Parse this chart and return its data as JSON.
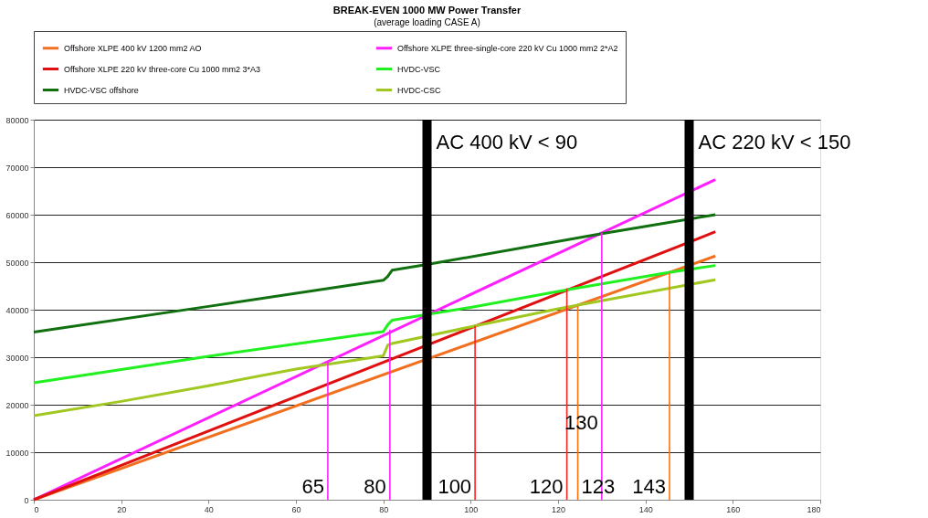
{
  "chart_data": {
    "type": "line",
    "title": "BREAK-EVEN 1000 MW Power Transfer",
    "subtitle": "(average loading CASE A)",
    "xlim": [
      0,
      180
    ],
    "xticks": [
      0,
      20,
      40,
      60,
      80,
      100,
      120,
      140,
      160,
      180
    ],
    "ylim": [
      0,
      80000
    ],
    "yticks": [
      0,
      10000,
      20000,
      30000,
      40000,
      50000,
      60000,
      70000,
      80000
    ],
    "grid": "y",
    "legend": "top",
    "line_style": "solid",
    "marker": "none",
    "series": [
      {
        "name": "Offshore XLPE 400 kV 1200 mm2 AO",
        "color": "#f07020",
        "x": [
          0,
          156
        ],
        "values": [
          0,
          51300
        ]
      },
      {
        "name": "Offshore XLPE three-single-core 220 kV Cu 1000 mm2 2*A2",
        "color": "#ff20ff",
        "x": [
          0,
          156
        ],
        "values": [
          0,
          67400
        ]
      },
      {
        "name": "Offshore XLPE 220 kV three-core Cu 1000 mm2 3*A3",
        "color": "#e01010",
        "x": [
          0,
          156
        ],
        "values": [
          0,
          56400
        ]
      },
      {
        "name": "HVDC-VSC",
        "color": "#20f020",
        "x": [
          0,
          40,
          80,
          81,
          82,
          100,
          122,
          145,
          156
        ],
        "values": [
          24600,
          30200,
          35400,
          36800,
          37800,
          40500,
          44200,
          47800,
          49300
        ]
      },
      {
        "name": "HVDC-VSC offshore",
        "color": "#107010",
        "x": [
          0,
          40,
          80,
          81,
          82,
          90,
          130,
          156
        ],
        "values": [
          35300,
          40700,
          46200,
          47000,
          48300,
          49500,
          56000,
          60000
        ]
      },
      {
        "name": "HVDC-CSC",
        "color": "#a0c820",
        "x": [
          0,
          20,
          40,
          60,
          80,
          81,
          82,
          100,
          120,
          156
        ],
        "values": [
          17700,
          20700,
          24000,
          27500,
          30300,
          32500,
          32900,
          36400,
          40200,
          46300
        ]
      },
      {
        "type": "line",
        "color": "#ff20ff",
        "x": [
          67.3,
          67.3
        ],
        "values": [
          0,
          29000
        ]
      },
      {
        "type": "line",
        "color": "#ff20ff",
        "x": [
          81.5,
          81.5
        ],
        "values": [
          0,
          35800
        ]
      },
      {
        "type": "line",
        "color": "#ff2020",
        "x": [
          101,
          101
        ],
        "values": [
          0,
          36600
        ]
      },
      {
        "type": "line",
        "color": "#ff2020",
        "x": [
          122,
          122
        ],
        "values": [
          0,
          44500
        ]
      },
      {
        "type": "line",
        "color": "#ff7010",
        "x": [
          124.5,
          124.5
        ],
        "values": [
          0,
          40700
        ]
      },
      {
        "type": "line",
        "color": "#ff20ff",
        "x": [
          130,
          130
        ],
        "values": [
          0,
          56200
        ]
      },
      {
        "type": "line",
        "color": "#ff7010",
        "x": [
          145.5,
          145.5
        ],
        "values": [
          0,
          47800
        ]
      }
    ],
    "ref_lines": [
      {
        "axis": "x",
        "value": 90,
        "label": "AC 400 kV < 90",
        "color": "#000000"
      },
      {
        "axis": "x",
        "value": 150,
        "label": "AC 220 kV < 150",
        "color": "#000000"
      }
    ],
    "annotations": [
      {
        "text": "65",
        "x": 67.3,
        "y": 2600
      },
      {
        "text": "80",
        "x": 81.5,
        "y": 2600
      },
      {
        "text": "100",
        "x": 101,
        "y": 2600
      },
      {
        "text": "120",
        "x": 122,
        "y": 2600
      },
      {
        "text": "123",
        "x": 124.5,
        "y": 2600
      },
      {
        "text": "130",
        "x": 130,
        "y": 16100
      },
      {
        "text": "143",
        "x": 145.5,
        "y": 2600
      }
    ]
  }
}
